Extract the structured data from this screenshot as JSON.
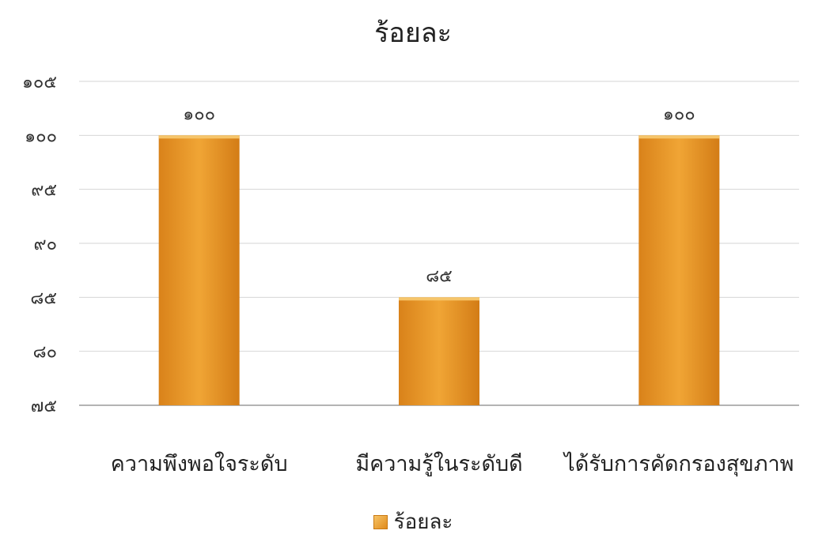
{
  "chart_data": {
    "type": "bar",
    "title": "ร้อยละ",
    "categories": [
      "ความพึงพอใจระดับ",
      "มีความรู้ในระดับดี",
      "ได้รับการคัดกรองสุขภาพ"
    ],
    "series": [
      {
        "name": "ร้อยละ",
        "values": [
          100,
          85,
          100
        ]
      }
    ],
    "data_labels": [
      "๑๐๐",
      "๘๕",
      "๑๐๐"
    ],
    "yticks": [
      75,
      80,
      85,
      90,
      95,
      100,
      105
    ],
    "ytick_labels": [
      "๗๕",
      "๘๐",
      "๘๕",
      "๙๐",
      "๙๕",
      "๑๐๐",
      "๑๐๕"
    ],
    "ylim": [
      75,
      105
    ],
    "grid": true,
    "legend_position": "bottom",
    "bar_color": "#e8951f"
  }
}
